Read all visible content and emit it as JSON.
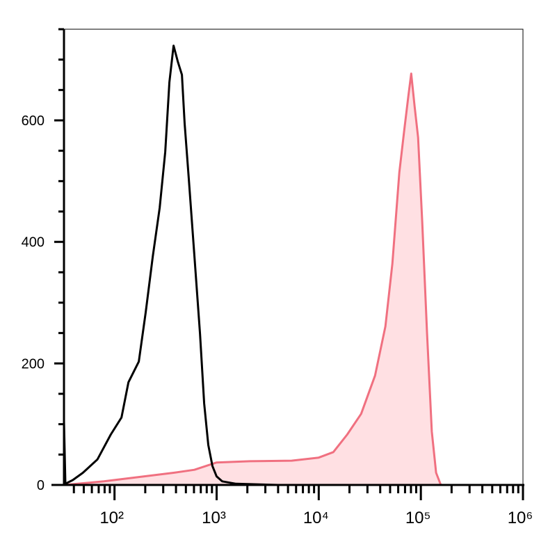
{
  "chart_data": {
    "type": "histogram-overlay",
    "xscale": "log",
    "xlim": [
      32,
      1000000
    ],
    "ylim": [
      0,
      750
    ],
    "xticks": [
      {
        "value": 100,
        "label": "10²"
      },
      {
        "value": 1000,
        "label": "10³"
      },
      {
        "value": 10000,
        "label": "10⁴"
      },
      {
        "value": 100000,
        "label": "10⁵"
      },
      {
        "value": 1000000,
        "label": "10⁶"
      }
    ],
    "xminorticks": [
      40,
      50,
      60,
      70,
      80,
      90,
      200,
      300,
      400,
      500,
      600,
      700,
      800,
      900,
      2000,
      3000,
      4000,
      5000,
      6000,
      7000,
      8000,
      9000,
      20000,
      30000,
      40000,
      50000,
      60000,
      70000,
      80000,
      90000,
      200000,
      300000,
      400000,
      500000,
      600000,
      700000,
      800000,
      900000
    ],
    "yticks": [
      0,
      200,
      400,
      600
    ],
    "yminorticks": [
      50,
      100,
      150,
      250,
      300,
      350,
      450,
      500,
      550,
      650,
      700,
      750
    ],
    "series": [
      {
        "color": "#000000",
        "filled": false,
        "x": [
          32,
          33,
          39,
          49,
          68,
          92,
          117,
          137,
          173,
          202,
          237,
          277,
          314,
          345,
          379,
          416,
          457,
          486,
          535,
          606,
          687,
          755,
          829,
          910,
          1000,
          1133,
          1549,
          3972
        ],
        "values": [
          105,
          2,
          8,
          20,
          42,
          83,
          111,
          169,
          203,
          284,
          376,
          456,
          548,
          663,
          723,
          697,
          675,
          595,
          502,
          376,
          249,
          134,
          66,
          31,
          14,
          6,
          2,
          0
        ]
      },
      {
        "color": "#f07080",
        "fill": "#ffe0e3",
        "filled": true,
        "x": [
          32,
          79,
          173,
          379,
          606,
          1000,
          2123,
          5433,
          10000,
          13900,
          19000,
          26000,
          35600,
          45000,
          52600,
          61500,
          68700,
          75500,
          80400,
          86900,
          94000,
          103000,
          115000,
          128000,
          141000,
          157000
        ],
        "values": [
          0,
          6,
          13,
          20,
          25,
          37,
          39,
          40,
          45,
          54,
          83,
          117,
          180,
          261,
          364,
          514,
          583,
          640,
          677,
          623,
          572,
          434,
          249,
          88,
          20,
          0
        ]
      }
    ]
  }
}
